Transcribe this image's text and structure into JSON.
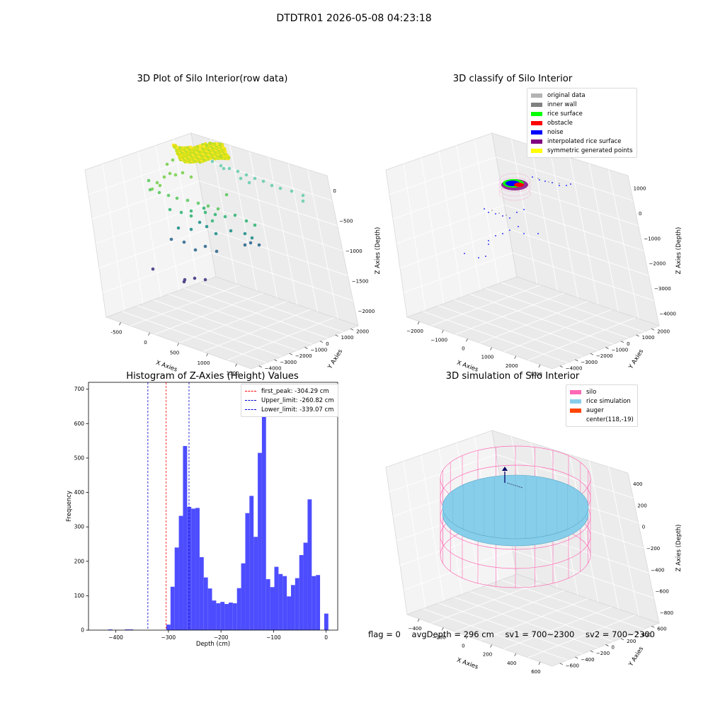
{
  "suptitle": "DTDTR01 2026-05-08 04:23:18",
  "footer": {
    "flag": "flag = 0",
    "avg_depth": "avgDepth = 296 cm",
    "sv1": "sv1 = 700~2300",
    "sv2": "sv2 = 700~2300"
  },
  "colors": {
    "hist_bar": "#4d4dff",
    "peak_line": "#ff0000",
    "limit_line": "#0000cc",
    "silo_wire": "#ff69b4",
    "rice_fill": "#87ceeb",
    "auger": "#ff4500",
    "pane": "#f2f2f2"
  },
  "chart_data": [
    {
      "type": "scatter",
      "title": "3D Plot of Silo Interior(row data)",
      "xlabel": "X Axies",
      "ylabel": "Y Axies",
      "zlabel": "Z Axies (Depth)",
      "x_ticks": [
        "-500",
        "0",
        "500",
        "1000",
        "1500"
      ],
      "y_ticks": [
        "2000",
        "1000",
        "0",
        "−1000",
        "−2000",
        "−3000",
        "−4000"
      ],
      "z_ticks": [
        "0",
        "−500",
        "−1000",
        "−1500",
        "−2000"
      ],
      "colormap": "viridis",
      "grid": true
    },
    {
      "type": "scatter",
      "title": "3D classify of Silo Interior",
      "xlabel": "X Axies",
      "ylabel": "Y Axies",
      "zlabel": "Z Axies (Depth)",
      "x_ticks": [
        "−2000",
        "−1000",
        "0",
        "1000",
        "2000",
        "3000"
      ],
      "y_ticks": [
        "2000",
        "1000",
        "0",
        "−1000",
        "−2000",
        "−3000",
        "−4000"
      ],
      "z_ticks": [
        "1000",
        "0",
        "−1000",
        "−2000",
        "−3000",
        "−4000"
      ],
      "legend_position": "top-right",
      "legend": [
        {
          "label": "original data",
          "color": "#b3b3b3"
        },
        {
          "label": "inner wall",
          "color": "#808080"
        },
        {
          "label": "rice surface",
          "color": "#00ff00"
        },
        {
          "label": "obstacle",
          "color": "#ff0000"
        },
        {
          "label": "noise",
          "color": "#0000ff"
        },
        {
          "label": "interpolated rice surface",
          "color": "#800080"
        },
        {
          "label": "symmetric generated points",
          "color": "#ffff00"
        }
      ],
      "grid": true
    },
    {
      "type": "bar",
      "title": "Histogram of Z-Axies (Height) Values",
      "xlabel": "Depth (cm)",
      "ylabel": "Frequency",
      "x_ticks": [
        -400,
        -300,
        -200,
        -100,
        0
      ],
      "y_ticks": [
        0,
        100,
        200,
        300,
        400,
        500,
        600,
        700
      ],
      "xlim": [
        -452,
        22
      ],
      "ylim": [
        0,
        720
      ],
      "bin_width": 7.9,
      "bin_start": -414.5,
      "values": [
        2,
        0,
        0,
        0,
        2,
        2,
        0,
        0,
        0,
        0,
        0,
        0,
        0,
        0,
        16,
        126,
        240,
        332,
        535,
        358,
        353,
        355,
        212,
        153,
        121,
        86,
        78,
        82,
        76,
        80,
        78,
        122,
        194,
        340,
        390,
        271,
        515,
        637,
        148,
        125,
        184,
        163,
        157,
        98,
        131,
        151,
        218,
        254,
        380,
        157,
        160,
        0,
        48
      ],
      "lines": [
        {
          "label": "first_peak: -304.29 cm",
          "x": -304.29,
          "color": "#ff0000"
        },
        {
          "label": "Upper_limit: -260.82 cm",
          "x": -260.82,
          "color": "#0000cc"
        },
        {
          "label": "Lower_limit: -339.07 cm",
          "x": -339.07,
          "color": "#0000cc"
        }
      ],
      "legend_position": "top-right",
      "grid": false
    },
    {
      "type": "scatter",
      "title": "3D simulation of Silo Interior",
      "xlabel": "X Axies",
      "ylabel": "Y Axies",
      "zlabel": "Z Axies (Depth)",
      "x_ticks": [
        "−400",
        "−200",
        "0",
        "200",
        "400",
        "600"
      ],
      "y_ticks": [
        "600",
        "400",
        "200",
        "0",
        "−200",
        "−400",
        "−600"
      ],
      "z_ticks": [
        "400",
        "200",
        "0",
        "−200",
        "−400",
        "−600",
        "−800"
      ],
      "legend_position": "top-right",
      "legend": [
        {
          "label": "silo",
          "color": "#ff69b4"
        },
        {
          "label": "rice simulation",
          "color": "#87ceeb"
        },
        {
          "label": "auger",
          "color": "#ff4500"
        },
        {
          "label": "center(118,-19)",
          "color": ""
        }
      ],
      "grid": true
    }
  ]
}
